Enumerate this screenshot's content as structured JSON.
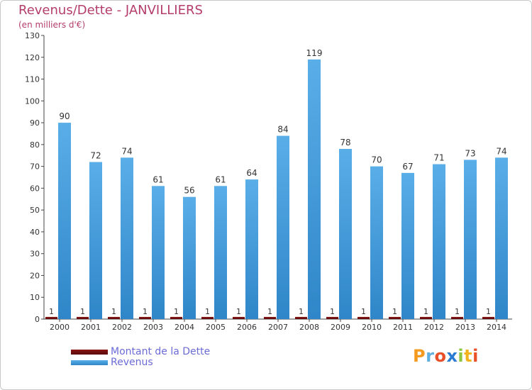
{
  "chart_data": {
    "type": "bar",
    "title": "Revenus/Dette - JANVILLIERS",
    "subtitle": "(en milliers d'€)",
    "categories": [
      "2000",
      "2001",
      "2002",
      "2003",
      "2004",
      "2005",
      "2006",
      "2007",
      "2008",
      "2009",
      "2010",
      "2011",
      "2012",
      "2013",
      "2014"
    ],
    "series": [
      {
        "name": "Montant de la Dette",
        "color": "#6b0f0f",
        "values": [
          1,
          1,
          1,
          1,
          1,
          1,
          1,
          1,
          1,
          1,
          1,
          1,
          1,
          1,
          1
        ]
      },
      {
        "name": "Revenus",
        "color": "#4aa3e3",
        "values": [
          90,
          72,
          74,
          61,
          56,
          61,
          64,
          84,
          119,
          78,
          70,
          67,
          71,
          73,
          74
        ]
      }
    ],
    "ylim": [
      0,
      130
    ],
    "yticks": [
      0,
      10,
      20,
      30,
      40,
      50,
      60,
      70,
      80,
      90,
      100,
      110,
      120,
      130
    ],
    "grid": false,
    "legend": "bottom-left"
  },
  "logo": {
    "text": "Proxiti"
  }
}
